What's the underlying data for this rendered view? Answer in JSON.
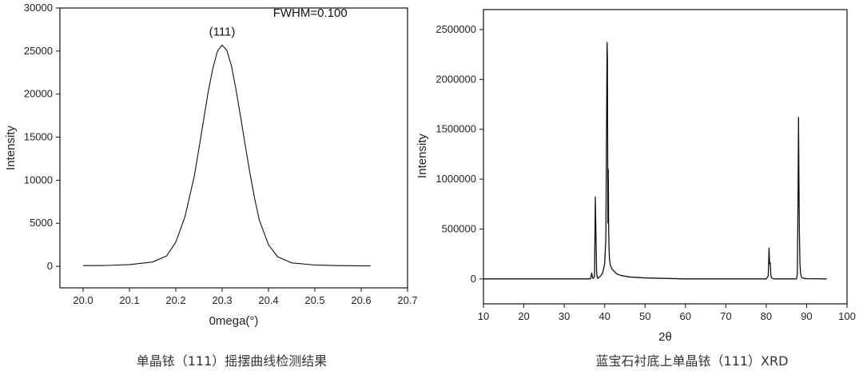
{
  "chart_data": [
    {
      "type": "line",
      "title": "",
      "caption": "单晶铱（111）摇摆曲线检测结果",
      "xlabel": "0mega(°)",
      "ylabel": "Intensity",
      "xlim": [
        19.95,
        20.7
      ],
      "ylim": [
        -2500,
        30000
      ],
      "xticks": [
        "20.0",
        "20.1",
        "20.2",
        "20.3",
        "20.4",
        "20.5",
        "20.6",
        "20.7"
      ],
      "yticks": [
        "0",
        "5000",
        "10000",
        "15000",
        "20000",
        "25000",
        "30000"
      ],
      "annotations": [
        {
          "text": "(111)",
          "x": 20.3,
          "y": 26800
        },
        {
          "text": "FWHM=0.100",
          "x": 20.49,
          "y": 29000
        }
      ],
      "series": [
        {
          "x": [
            20.0,
            20.05,
            20.1,
            20.15,
            20.18,
            20.2,
            20.22,
            20.24,
            20.25,
            20.26,
            20.27,
            20.28,
            20.29,
            20.3,
            20.31,
            20.32,
            20.33,
            20.34,
            20.35,
            20.36,
            20.37,
            20.38,
            20.4,
            20.42,
            20.45,
            20.5,
            20.55,
            20.62
          ],
          "y": [
            80,
            100,
            200,
            500,
            1200,
            2800,
            5800,
            10500,
            13700,
            17000,
            20300,
            23000,
            25000,
            25700,
            25100,
            23300,
            20500,
            17300,
            14000,
            10800,
            7900,
            5400,
            2500,
            1100,
            400,
            150,
            80,
            50
          ]
        }
      ]
    },
    {
      "type": "line",
      "title": "",
      "caption": "蓝宝石衬底上单晶铱（111）XRD",
      "xlabel": "2θ",
      "ylabel": "Intensity",
      "xlim": [
        10,
        100
      ],
      "ylim": [
        -250000,
        2700000
      ],
      "xticks": [
        "10",
        "20",
        "30",
        "40",
        "50",
        "60",
        "70",
        "80",
        "90",
        "100"
      ],
      "yticks": [
        "0",
        "500000",
        "1000000",
        "1500000",
        "2000000",
        "2500000"
      ],
      "series": [
        {
          "x": [
            10,
            36.5,
            36.8,
            37.0,
            37.2,
            37.5,
            37.7,
            37.85,
            38.0,
            38.15,
            38.3,
            38.6,
            39.0,
            39.5,
            40.0,
            40.3,
            40.5,
            40.6,
            40.7,
            40.8,
            40.9,
            41.0,
            41.1,
            41.2,
            41.4,
            41.7,
            42.0,
            42.5,
            43.0,
            44.0,
            46.0,
            50.0,
            55.0,
            60.0,
            70.0,
            80.0,
            80.5,
            80.7,
            80.85,
            81.0,
            81.15,
            81.3,
            81.6,
            82.0,
            85.0,
            87.5,
            87.7,
            87.85,
            88.0,
            88.1,
            88.2,
            88.35,
            88.5,
            88.7,
            89.0,
            90.0,
            95.0
          ],
          "y": [
            0,
            0,
            60000,
            10000,
            5000,
            30000,
            820000,
            450000,
            80000,
            20000,
            5000,
            15000,
            30000,
            60000,
            150000,
            400000,
            1700000,
            2370000,
            2200000,
            560000,
            1100000,
            480000,
            300000,
            200000,
            140000,
            110000,
            90000,
            70000,
            50000,
            35000,
            20000,
            10000,
            5000,
            0,
            0,
            0,
            30000,
            310000,
            150000,
            160000,
            40000,
            10000,
            5000,
            0,
            0,
            0,
            50000,
            720000,
            1620000,
            980000,
            500000,
            150000,
            60000,
            20000,
            8000,
            2000,
            0
          ]
        }
      ]
    }
  ]
}
